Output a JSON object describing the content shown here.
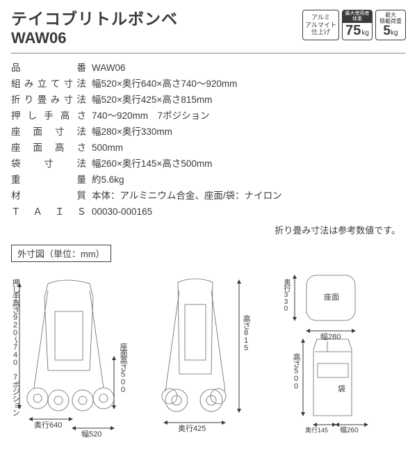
{
  "header": {
    "title": "テイコブリトルボンベ",
    "model": "WAW06"
  },
  "badges": {
    "finish": {
      "line1": "アルミ",
      "line2": "アルマイト",
      "line3": "仕上げ"
    },
    "user_weight": {
      "label1": "最大使用者",
      "label2": "体重",
      "value": "75",
      "unit": "kg"
    },
    "load": {
      "label1": "最大",
      "label2": "積載荷重",
      "value": "5",
      "unit": "kg"
    }
  },
  "specs": [
    {
      "label": "品番",
      "value": "WAW06"
    },
    {
      "label": "組み立て寸法",
      "value": "幅520×奥行640×高さ740〜920mm"
    },
    {
      "label": "折り畳み寸法",
      "value": "幅520×奥行425×高さ815mm"
    },
    {
      "label": "押し手高さ",
      "value": "740〜920mm　7ポジション"
    },
    {
      "label": "座面寸法",
      "value": "幅280×奥行330mm"
    },
    {
      "label": "座面高さ",
      "value": "500mm"
    },
    {
      "label": "袋寸法",
      "value": "幅260×奥行145×高さ500mm"
    },
    {
      "label": "重量",
      "value": "約5.6kg"
    },
    {
      "label": "材質",
      "value": "本体：アルミニウム合金、座面/袋：ナイロン"
    },
    {
      "label": "ＴＡＩＳ",
      "value": "00030-000165"
    }
  ],
  "note": "折り畳み寸法は参考数値です。",
  "diagram": {
    "title": "外寸図",
    "unit_label": "（単位：mm）",
    "labels": {
      "handle_height": "押し手高さ",
      "handle_range": "920〜740",
      "handle_pos": "7ポジション",
      "seat_height_label": "座面高さ",
      "seat_height": "500",
      "depth1": "奥行640",
      "width1": "幅520",
      "height_folded": "高さ",
      "height_folded_val": "815",
      "depth2": "奥行425",
      "seat": "座面",
      "seat_depth_label": "奥行",
      "seat_depth": "330",
      "seat_width": "幅280",
      "bag": "袋",
      "bag_height": "高さ",
      "bag_height_val": "500",
      "bag_depth": "奥行145",
      "bag_width": "幅260"
    },
    "colors": {
      "line": "#3a3a3a",
      "bg": "#ffffff"
    }
  }
}
